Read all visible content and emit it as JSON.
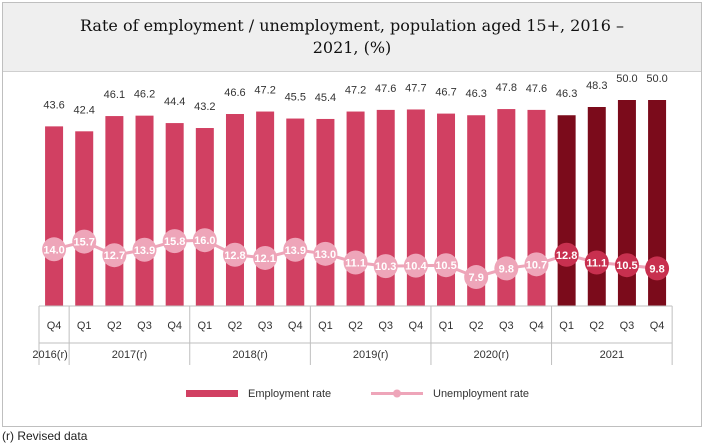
{
  "chart_data": {
    "type": "bar",
    "title": "Rate of employment / unemployment, population aged 15+, 2016 – 2021, (%)",
    "quarters": [
      "Q4",
      "Q1",
      "Q2",
      "Q3",
      "Q4",
      "Q1",
      "Q2",
      "Q3",
      "Q4",
      "Q1",
      "Q2",
      "Q3",
      "Q4",
      "Q1",
      "Q2",
      "Q3",
      "Q4",
      "Q1",
      "Q2",
      "Q3",
      "Q4"
    ],
    "year_groups": [
      {
        "label": "2016(r)",
        "span": 1
      },
      {
        "label": "2017(r)",
        "span": 4
      },
      {
        "label": "2018(r)",
        "span": 4
      },
      {
        "label": "2019(r)",
        "span": 4
      },
      {
        "label": "2020(r)",
        "span": 4
      },
      {
        "label": "2021",
        "span": 4
      }
    ],
    "series": [
      {
        "name": "Employment rate",
        "type": "bar",
        "values": [
          43.6,
          42.4,
          46.1,
          46.2,
          44.4,
          43.2,
          46.6,
          47.2,
          45.5,
          45.4,
          47.2,
          47.6,
          47.7,
          46.7,
          46.3,
          47.8,
          47.6,
          46.3,
          48.3,
          50.0,
          50.0
        ],
        "color": "#d14062",
        "highlight_color": "#7b0b1b"
      },
      {
        "name": "Unemployment rate",
        "type": "line",
        "values": [
          14.0,
          15.7,
          12.7,
          13.9,
          15.8,
          16.0,
          12.8,
          12.1,
          13.9,
          13.0,
          11.1,
          10.3,
          10.4,
          10.5,
          7.9,
          9.8,
          10.7,
          12.8,
          11.1,
          10.5,
          9.8
        ],
        "color": "#eea5b9",
        "highlight_color": "#c8304f"
      }
    ],
    "highlight_from_index": 17,
    "legend_position": "bottom",
    "grid": false
  },
  "footnote": "(r) Revised data"
}
